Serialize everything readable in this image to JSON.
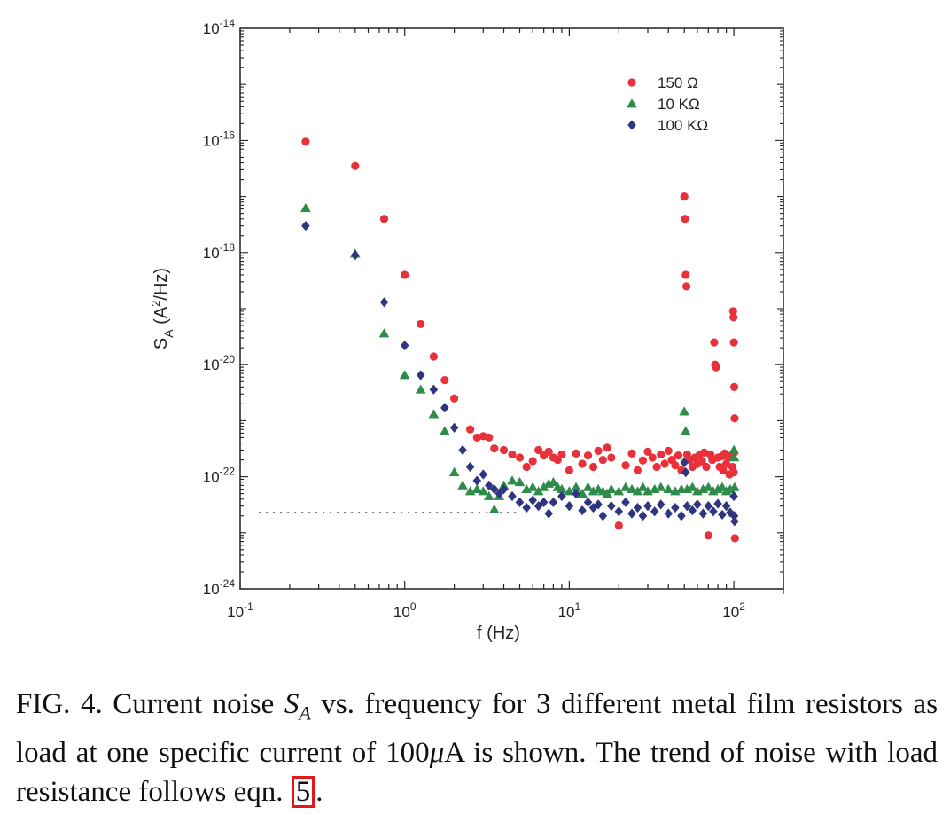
{
  "chart_data": {
    "type": "scatter",
    "x_scale": "log",
    "y_scale": "log",
    "xlim": [
      0.1,
      200
    ],
    "ylim": [
      1e-24,
      1e-14
    ],
    "xlabel": "f (Hz)",
    "ylabel": "S_A (A^2/Hz)",
    "x_ticks": [
      {
        "value": 0.1,
        "base": "10",
        "exp": "-1"
      },
      {
        "value": 1,
        "base": "10",
        "exp": "0"
      },
      {
        "value": 10,
        "base": "10",
        "exp": "1"
      },
      {
        "value": 100,
        "base": "10",
        "exp": "2"
      }
    ],
    "y_ticks": [
      {
        "value": 1e-14,
        "base": "10",
        "exp": "-14"
      },
      {
        "value": 1e-16,
        "base": "10",
        "exp": "-16"
      },
      {
        "value": 1e-18,
        "base": "10",
        "exp": "-18"
      },
      {
        "value": 1e-20,
        "base": "10",
        "exp": "-20"
      },
      {
        "value": 1e-22,
        "base": "10",
        "exp": "-22"
      },
      {
        "value": 1e-24,
        "base": "10",
        "exp": "-24"
      }
    ],
    "reference_line": {
      "y": 2.3e-23,
      "x_range": [
        0.13,
        5
      ],
      "style": "dotted"
    },
    "legend_position": "top-right",
    "series": [
      {
        "name": "150 Ω",
        "color": "#e8313a",
        "marker": "circle",
        "points": [
          [
            0.25,
            9.5e-17
          ],
          [
            0.5,
            3.5e-17
          ],
          [
            0.75,
            4e-18
          ],
          [
            1.0,
            4e-19
          ],
          [
            1.25,
            5.3e-20
          ],
          [
            1.5,
            1.4e-20
          ],
          [
            1.75,
            5.3e-21
          ],
          [
            2.0,
            2.5e-21
          ],
          [
            2.5,
            7e-22
          ],
          [
            2.75,
            5e-22
          ],
          [
            3.0,
            5.3e-22
          ],
          [
            3.25,
            5e-22
          ],
          [
            3.5,
            3.2e-22
          ],
          [
            4.0,
            3e-22
          ],
          [
            4.5,
            2.5e-22
          ],
          [
            5.0,
            2.2e-22
          ],
          [
            5.5,
            1.5e-22
          ],
          [
            6.0,
            1.9e-22
          ],
          [
            6.5,
            3e-22
          ],
          [
            7.0,
            2.4e-22
          ],
          [
            7.5,
            2.8e-22
          ],
          [
            8.0,
            2.2e-22
          ],
          [
            8.5,
            2e-22
          ],
          [
            9.0,
            2.5e-22
          ],
          [
            10.0,
            1.3e-22
          ],
          [
            11.0,
            2.6e-22
          ],
          [
            12.0,
            1.7e-22
          ],
          [
            13.0,
            2.4e-22
          ],
          [
            14.0,
            1.5e-22
          ],
          [
            15.0,
            2.9e-22
          ],
          [
            16.0,
            2e-22
          ],
          [
            17.0,
            3.3e-22
          ],
          [
            18.0,
            2.2e-22
          ],
          [
            20.0,
            1.35e-23
          ],
          [
            22.0,
            1.6e-22
          ],
          [
            24.0,
            2.6e-22
          ],
          [
            26.0,
            1.3e-22
          ],
          [
            28.0,
            1.95e-22
          ],
          [
            30.0,
            2.8e-22
          ],
          [
            32.0,
            2.2e-22
          ],
          [
            34.0,
            1.5e-22
          ],
          [
            36.0,
            2.5e-22
          ],
          [
            38.0,
            1.7e-22
          ],
          [
            40.0,
            2.9e-22
          ],
          [
            42.0,
            2e-22
          ],
          [
            44.0,
            1.6e-22
          ],
          [
            46.0,
            2.4e-22
          ],
          [
            48.0,
            1.3e-22
          ],
          [
            50.0,
            1e-17
          ],
          [
            50.5,
            4e-18
          ],
          [
            51.0,
            4e-19
          ],
          [
            51.5,
            2.5e-19
          ],
          [
            52.0,
            2.5e-22
          ],
          [
            54.0,
            2e-22
          ],
          [
            56.0,
            1.5e-22
          ],
          [
            58.0,
            2.2e-22
          ],
          [
            60.0,
            1.7e-22
          ],
          [
            62.0,
            2.5e-22
          ],
          [
            64.0,
            1.9e-22
          ],
          [
            66.0,
            2.7e-22
          ],
          [
            68.0,
            1.5e-22
          ],
          [
            70.0,
            9e-24
          ],
          [
            72.0,
            2.5e-22
          ],
          [
            74.0,
            2e-22
          ],
          [
            76.0,
            2.5e-20
          ],
          [
            77.0,
            1e-20
          ],
          [
            78.0,
            9e-21
          ],
          [
            80.0,
            2.2e-22
          ],
          [
            82.0,
            1.5e-22
          ],
          [
            84.0,
            2.3e-22
          ],
          [
            86.0,
            1.3e-22
          ],
          [
            88.0,
            2.6e-22
          ],
          [
            90.0,
            1.7e-22
          ],
          [
            92.0,
            2.2e-22
          ],
          [
            94.0,
            1.1e-22
          ],
          [
            96.0,
            2.4e-22
          ],
          [
            98.0,
            1.5e-22
          ],
          [
            99.0,
            9e-20
          ],
          [
            99.5,
            7e-20
          ],
          [
            100.0,
            2.5e-20
          ],
          [
            100.5,
            4e-21
          ],
          [
            101.0,
            1.1e-21
          ],
          [
            101.5,
            8e-24
          ],
          [
            100.2,
            2.7e-22
          ],
          [
            99.8,
            1.2e-22
          ]
        ]
      },
      {
        "name": "10 KΩ",
        "color": "#2e8b4a",
        "marker": "triangle",
        "points": [
          [
            0.25,
            6.2e-18
          ],
          [
            0.5,
            9.5e-19
          ],
          [
            0.75,
            3.6e-20
          ],
          [
            1.0,
            6.5e-21
          ],
          [
            1.25,
            3.6e-21
          ],
          [
            1.5,
            1.3e-21
          ],
          [
            1.75,
            6.5e-22
          ],
          [
            2.0,
            1.2e-22
          ],
          [
            2.25,
            7e-23
          ],
          [
            2.5,
            5.5e-23
          ],
          [
            2.75,
            6e-23
          ],
          [
            3.0,
            5.5e-23
          ],
          [
            3.25,
            4.5e-23
          ],
          [
            3.5,
            2.6e-23
          ],
          [
            3.75,
            4.5e-23
          ],
          [
            4.0,
            7e-23
          ],
          [
            4.5,
            8.5e-23
          ],
          [
            5.0,
            8e-23
          ],
          [
            5.5,
            6e-23
          ],
          [
            6.0,
            6.5e-23
          ],
          [
            6.5,
            5.5e-23
          ],
          [
            7.0,
            6.5e-23
          ],
          [
            7.5,
            7.5e-23
          ],
          [
            8.0,
            8e-23
          ],
          [
            8.5,
            6.5e-23
          ],
          [
            9.0,
            6e-23
          ],
          [
            10.0,
            5.5e-23
          ],
          [
            11.0,
            6.5e-23
          ],
          [
            12.0,
            5e-23
          ],
          [
            13.0,
            6.5e-23
          ],
          [
            14.0,
            5.5e-23
          ],
          [
            15.0,
            6e-23
          ],
          [
            16.0,
            5.5e-23
          ],
          [
            17.0,
            5e-23
          ],
          [
            18.0,
            6e-23
          ],
          [
            20.0,
            5.5e-23
          ],
          [
            22.0,
            6.5e-23
          ],
          [
            24.0,
            6e-23
          ],
          [
            26.0,
            5.5e-23
          ],
          [
            28.0,
            6.5e-23
          ],
          [
            30.0,
            5.5e-23
          ],
          [
            33.0,
            6e-23
          ],
          [
            36.0,
            6.5e-23
          ],
          [
            40.0,
            6e-23
          ],
          [
            44.0,
            5.5e-23
          ],
          [
            48.0,
            6e-23
          ],
          [
            50.0,
            1.45e-21
          ],
          [
            51.0,
            6.5e-22
          ],
          [
            52.0,
            6e-23
          ],
          [
            56.0,
            6.5e-23
          ],
          [
            60.0,
            5.5e-23
          ],
          [
            65.0,
            6e-23
          ],
          [
            70.0,
            6.5e-23
          ],
          [
            75.0,
            5.5e-23
          ],
          [
            80.0,
            6e-23
          ],
          [
            85.0,
            6.5e-23
          ],
          [
            90.0,
            5.5e-23
          ],
          [
            95.0,
            6e-23
          ],
          [
            100.0,
            3e-22
          ],
          [
            100.5,
            2.2e-22
          ],
          [
            101.0,
            6.5e-23
          ]
        ]
      },
      {
        "name": "100 KΩ",
        "color": "#2f3580",
        "marker": "diamond",
        "points": [
          [
            0.25,
            3e-18
          ],
          [
            0.5,
            9e-19
          ],
          [
            0.75,
            1.3e-19
          ],
          [
            1.0,
            2.2e-20
          ],
          [
            1.25,
            6.5e-21
          ],
          [
            1.5,
            3.6e-21
          ],
          [
            1.75,
            1.7e-21
          ],
          [
            2.0,
            7.5e-22
          ],
          [
            2.25,
            3e-22
          ],
          [
            2.5,
            1.5e-22
          ],
          [
            2.75,
            8.5e-23
          ],
          [
            3.0,
            1.1e-22
          ],
          [
            3.25,
            7e-23
          ],
          [
            3.5,
            6e-23
          ],
          [
            3.75,
            5e-23
          ],
          [
            4.0,
            6e-23
          ],
          [
            4.5,
            4.5e-23
          ],
          [
            5.0,
            3.5e-23
          ],
          [
            5.5,
            2.8e-23
          ],
          [
            6.0,
            3.8e-23
          ],
          [
            6.5,
            3e-23
          ],
          [
            7.0,
            3.5e-23
          ],
          [
            7.5,
            2.2e-23
          ],
          [
            8.0,
            3.5e-23
          ],
          [
            9.0,
            4.5e-23
          ],
          [
            10.0,
            3e-23
          ],
          [
            11.0,
            5e-23
          ],
          [
            12.0,
            2.5e-23
          ],
          [
            13.0,
            3.5e-23
          ],
          [
            14.0,
            2.8e-23
          ],
          [
            15.0,
            3.2e-23
          ],
          [
            16.0,
            2e-23
          ],
          [
            18.0,
            3e-23
          ],
          [
            20.0,
            2.4e-23
          ],
          [
            22.0,
            3.5e-23
          ],
          [
            24.0,
            2.2e-23
          ],
          [
            26.0,
            2.8e-23
          ],
          [
            28.0,
            2e-23
          ],
          [
            30.0,
            3e-23
          ],
          [
            33.0,
            2.4e-23
          ],
          [
            36.0,
            3.2e-23
          ],
          [
            40.0,
            2.2e-23
          ],
          [
            44.0,
            2.8e-23
          ],
          [
            48.0,
            2e-23
          ],
          [
            50.0,
            1.8e-22
          ],
          [
            51.0,
            1.2e-22
          ],
          [
            52.0,
            3e-23
          ],
          [
            56.0,
            2.5e-23
          ],
          [
            60.0,
            3.2e-23
          ],
          [
            65.0,
            2.2e-23
          ],
          [
            70.0,
            3e-23
          ],
          [
            75.0,
            2.4e-23
          ],
          [
            80.0,
            3.3e-23
          ],
          [
            85.0,
            2.1e-23
          ],
          [
            90.0,
            3e-23
          ],
          [
            95.0,
            2.3e-23
          ],
          [
            100.0,
            4.5e-23
          ],
          [
            100.5,
            2e-23
          ],
          [
            101.0,
            1.6e-23
          ]
        ]
      }
    ]
  },
  "caption": {
    "text": "FIG. 4. Current noise S_A vs. frequency for 3 different metal film resistors as load at one specific current of 100μA is shown. The trend of noise with load resistance follows eqn.",
    "label": "FIG. 4.",
    "part1": "Current noise",
    "symbol_base": "S",
    "symbol_sub": "A",
    "part2": "vs. frequency for 3 different metal film resistors as load at one specific current of 100",
    "mu": "μ",
    "part3": "A is shown. The trend of noise with load resistance follows eqn.",
    "ref": "5",
    "end": "."
  }
}
